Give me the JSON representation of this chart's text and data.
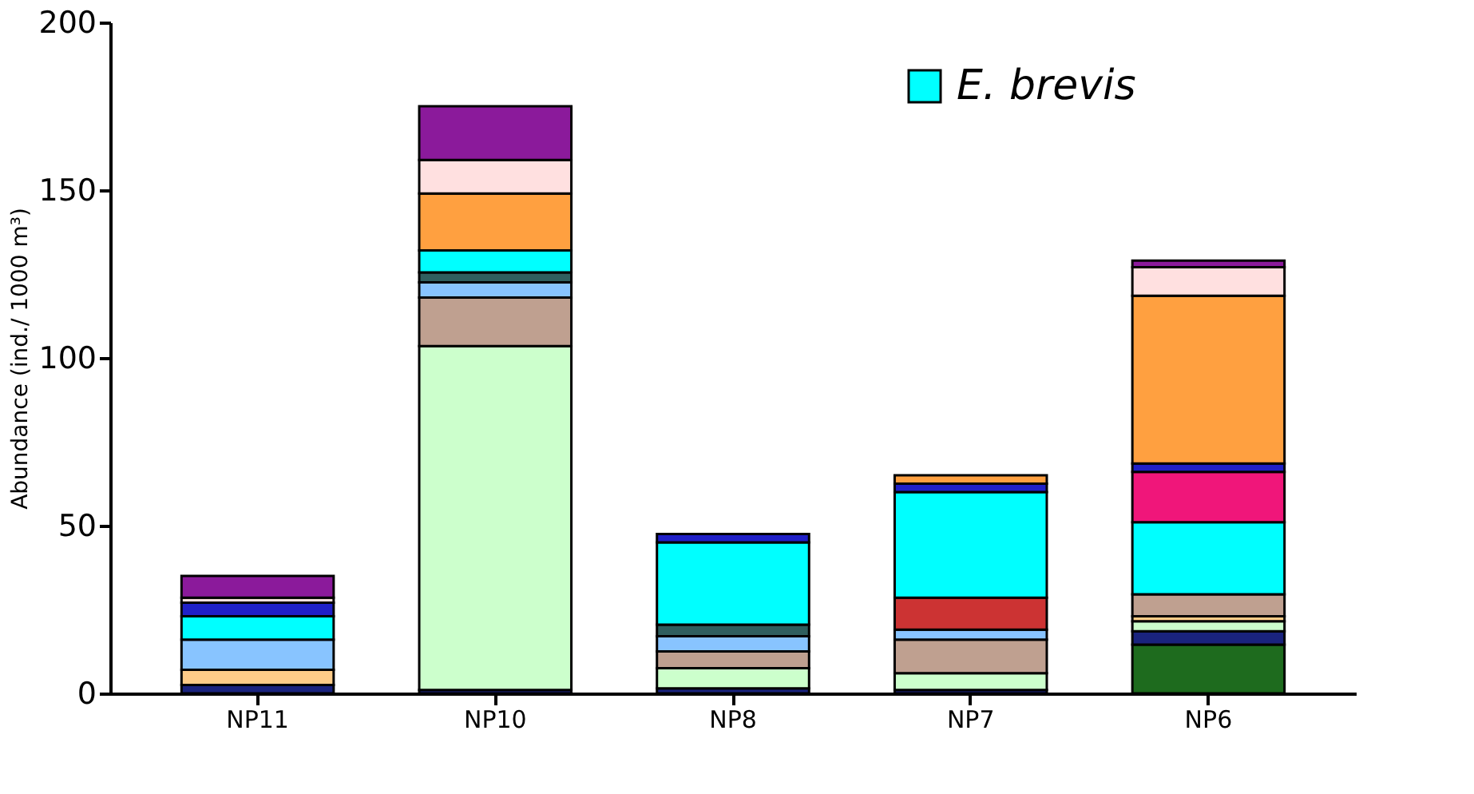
{
  "chart_data": {
    "type": "bar",
    "stacked": true,
    "ylabel": "Abundance (ind./ 1000 m³)",
    "categories": [
      "NP11",
      "NP10",
      "NP8",
      "NP7",
      "NP6"
    ],
    "ylim": [
      0,
      200
    ],
    "yticks": [
      0,
      50,
      100,
      150,
      200
    ],
    "grid": false,
    "legend": "top right",
    "series": [
      {
        "color": "#1e6b1e",
        "values": [
          null,
          null,
          null,
          null,
          14.5
        ]
      },
      {
        "color": "#1a237e",
        "values": [
          2.5,
          1,
          1.5,
          1,
          4
        ]
      },
      {
        "color": "#ccffcc",
        "values": [
          null,
          102.5,
          6,
          5,
          3
        ]
      },
      {
        "color": "#ffcc88",
        "values": [
          4.5,
          null,
          null,
          null,
          1.5
        ]
      },
      {
        "color": "#bfa090",
        "values": [
          null,
          14.5,
          5,
          10,
          6.5
        ]
      },
      {
        "color": "#88c4ff",
        "values": [
          9,
          4.5,
          4.5,
          3,
          null
        ]
      },
      {
        "color": "#2f5f5f",
        "values": [
          null,
          3,
          3.5,
          null,
          null
        ]
      },
      {
        "color": "#cc3333",
        "values": [
          null,
          null,
          null,
          9.5,
          null
        ]
      },
      {
        "name": "E. brevis",
        "color": "#00ffff",
        "values": [
          7,
          6.5,
          24.5,
          31.5,
          21.5
        ]
      },
      {
        "color": "#f0167a",
        "values": [
          null,
          null,
          null,
          null,
          15
        ]
      },
      {
        "color": "#2020c8",
        "values": [
          4,
          null,
          2.5,
          2.5,
          2.5
        ]
      },
      {
        "color": "#ffa040",
        "values": [
          null,
          17,
          null,
          2.5,
          50
        ]
      },
      {
        "color": "#ffe0e0",
        "values": [
          1.5,
          10,
          null,
          null,
          8.5
        ]
      },
      {
        "color": "#8b1a9b",
        "values": [
          6.5,
          16,
          null,
          null,
          2
        ]
      }
    ]
  }
}
